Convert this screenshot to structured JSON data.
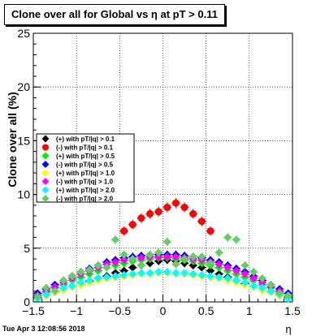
{
  "title": "Clone  over all for Global vs   η at pT > 0.11",
  "timestamp": "Tue Apr  3 12:08:56 2018",
  "chart_data": {
    "type": "scatter",
    "xlabel": "η",
    "ylabel": "Clone  over all (%)",
    "xlim": [
      -1.5,
      1.5
    ],
    "ylim": [
      0,
      25
    ],
    "x_ticks": [
      "−1.5",
      "−1",
      "−0.5",
      "0",
      "0.5",
      "1",
      "1.5"
    ],
    "y_ticks": [
      "0",
      "5",
      "10",
      "15",
      "20",
      "25"
    ],
    "grid": true,
    "legend_position": "left",
    "x": [
      -1.45,
      -1.35,
      -1.25,
      -1.15,
      -1.05,
      -0.95,
      -0.85,
      -0.75,
      -0.65,
      -0.55,
      -0.45,
      -0.35,
      -0.25,
      -0.15,
      -0.05,
      0.05,
      0.15,
      0.25,
      0.35,
      0.45,
      0.55,
      0.65,
      0.75,
      0.85,
      0.95,
      1.05,
      1.15,
      1.25,
      1.35,
      1.45
    ],
    "series": [
      {
        "name": "(+) with pT/|q| > 0.1",
        "color": "#000000",
        "values": [
          0.4,
          0.6,
          0.9,
          1.1,
          1.4,
          1.6,
          1.9,
          2.2,
          2.4,
          2.7,
          2.9,
          3.2,
          3.4,
          3.6,
          3.8,
          3.9,
          3.8,
          3.6,
          3.4,
          3.2,
          2.9,
          2.6,
          2.3,
          2.0,
          1.7,
          1.4,
          1.1,
          0.9,
          0.6,
          0.4
        ]
      },
      {
        "name": "(-) with pT/|q| > 0.1",
        "color": "#ff0000",
        "values": [
          null,
          null,
          null,
          null,
          null,
          null,
          null,
          null,
          null,
          null,
          6.6,
          7.2,
          7.8,
          8.2,
          8.4,
          8.8,
          9.2,
          8.8,
          8.2,
          7.5,
          6.6,
          null,
          null,
          null,
          null,
          null,
          null,
          null,
          null,
          null
        ]
      },
      {
        "name": "(+) with pT/|q| > 0.5",
        "color": "#00ee00",
        "values": [
          0.5,
          0.9,
          1.3,
          1.6,
          2.0,
          2.3,
          2.6,
          2.9,
          3.2,
          3.4,
          3.6,
          3.8,
          3.9,
          4.0,
          4.1,
          4.1,
          4.0,
          3.9,
          3.8,
          3.6,
          3.4,
          3.2,
          2.9,
          2.6,
          2.3,
          2.0,
          1.6,
          1.3,
          0.9,
          0.5
        ]
      },
      {
        "name": "(-) with pT/|q| > 0.5",
        "color": "#0000ff",
        "values": [
          0.8,
          1.2,
          1.6,
          2.0,
          2.4,
          2.8,
          3.1,
          3.4,
          3.7,
          3.9,
          4.1,
          4.2,
          4.3,
          4.4,
          4.4,
          4.4,
          4.4,
          4.3,
          4.2,
          4.1,
          3.9,
          3.7,
          3.4,
          3.1,
          2.8,
          2.4,
          2.0,
          1.6,
          1.2,
          0.8
        ]
      },
      {
        "name": "(+) with pT/|q| > 1.0",
        "color": "#ffff00",
        "values": [
          0.3,
          0.6,
          0.9,
          1.1,
          1.4,
          1.6,
          1.8,
          2.0,
          2.2,
          2.3,
          2.4,
          2.5,
          2.6,
          2.6,
          2.7,
          2.7,
          2.6,
          2.6,
          2.5,
          2.4,
          2.3,
          2.2,
          2.0,
          1.8,
          1.6,
          1.4,
          1.1,
          0.9,
          0.6,
          0.3
        ]
      },
      {
        "name": "(-) with pT/|q| > 1.0",
        "color": "#ff00ff",
        "values": [
          0.6,
          1.0,
          1.4,
          1.8,
          2.2,
          2.6,
          2.9,
          3.2,
          3.5,
          3.7,
          3.9,
          4.0,
          4.1,
          4.2,
          4.2,
          4.2,
          4.2,
          4.1,
          4.0,
          3.9,
          3.7,
          3.5,
          3.2,
          2.9,
          2.6,
          2.2,
          1.8,
          1.4,
          1.0,
          0.6
        ]
      },
      {
        "name": "(+) with pT/|q| > 2.0",
        "color": "#00ffff",
        "values": [
          0.3,
          0.7,
          1.0,
          1.3,
          1.5,
          1.8,
          2.0,
          2.2,
          2.3,
          2.4,
          2.5,
          2.6,
          2.7,
          2.7,
          2.8,
          2.8,
          2.7,
          2.7,
          2.6,
          2.5,
          2.4,
          2.3,
          2.2,
          2.0,
          1.8,
          1.5,
          1.3,
          1.0,
          0.7,
          0.3
        ]
      },
      {
        "name": "(-) with pT/|q| > 2.0",
        "color": "#66cc66",
        "values": [
          0.5,
          1.3,
          1.0,
          2.0,
          2.4,
          2.8,
          3.0,
          3.4,
          3.2,
          5.8,
          4.4,
          4.0,
          3.4,
          4.4,
          4.6,
          5.6,
          3.5,
          4.0,
          4.2,
          4.2,
          3.6,
          4.6,
          6.0,
          5.8,
          3.4,
          2.8,
          2.2,
          1.6,
          0.8,
          0.6
        ]
      }
    ]
  }
}
